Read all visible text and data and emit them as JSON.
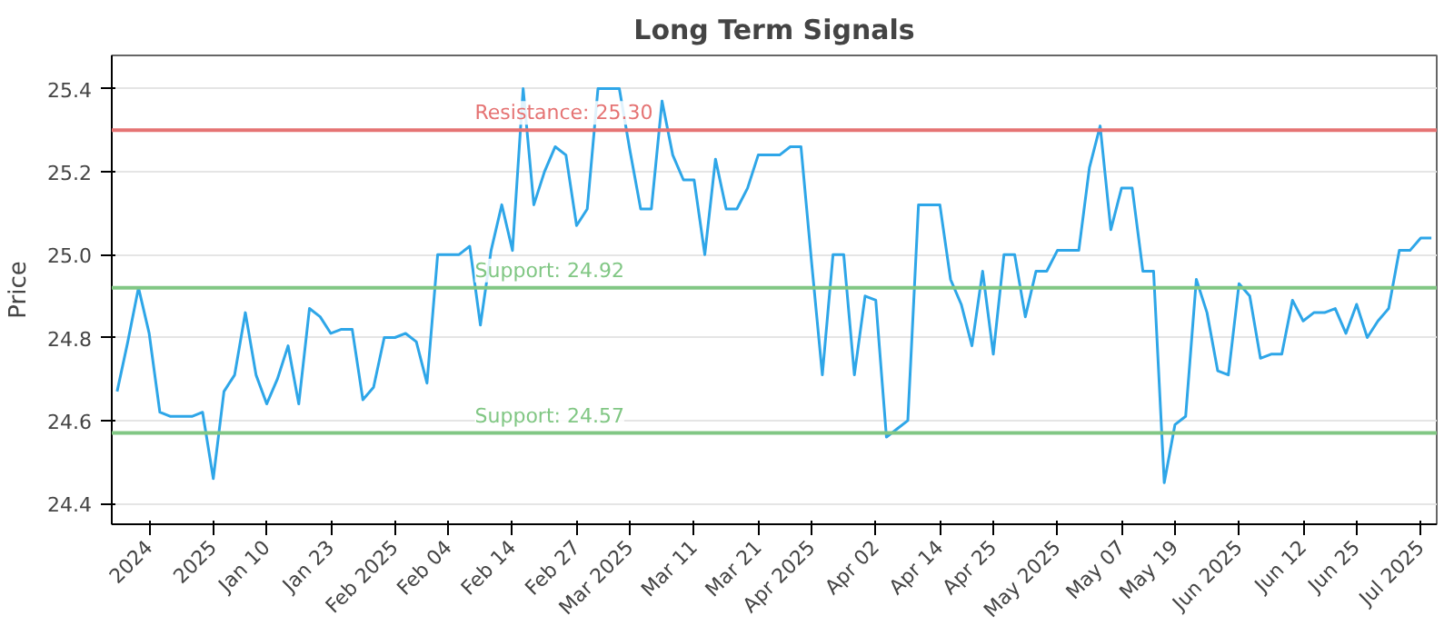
{
  "chart_data": {
    "type": "line",
    "title": "Long Term Signals",
    "ylabel": "Price",
    "categories": [
      null,
      null,
      null,
      "2024",
      null,
      null,
      null,
      null,
      null,
      "2025",
      null,
      null,
      null,
      null,
      "Jan 10",
      null,
      null,
      null,
      null,
      null,
      "Jan 23",
      null,
      null,
      null,
      null,
      null,
      "Feb 2025",
      null,
      null,
      null,
      null,
      "Feb 04",
      null,
      null,
      null,
      null,
      null,
      "Feb 14",
      null,
      null,
      null,
      null,
      null,
      "Feb 27",
      null,
      null,
      null,
      null,
      "Mar 2025",
      null,
      null,
      null,
      null,
      null,
      "Mar 11",
      null,
      null,
      null,
      null,
      null,
      "Mar 21",
      null,
      null,
      null,
      null,
      "Apr 2025",
      null,
      null,
      null,
      null,
      null,
      "Apr 02",
      null,
      null,
      null,
      null,
      null,
      "Apr 14",
      null,
      null,
      null,
      null,
      "Apr 25",
      null,
      null,
      null,
      null,
      null,
      "May 2025",
      null,
      null,
      null,
      null,
      null,
      "May 07",
      null,
      null,
      null,
      null,
      "May 19",
      null,
      null,
      null,
      null,
      null,
      "Jun 2025",
      null,
      null,
      null,
      null,
      null,
      "Jun 12",
      null,
      null,
      null,
      null,
      "Jun 25",
      null,
      null,
      null,
      null,
      null,
      "Jul 2025",
      null
    ],
    "series": [
      {
        "color": "#2ea6e8",
        "values": [
          24.67,
          24.79,
          24.92,
          24.81,
          24.62,
          24.61,
          24.61,
          24.61,
          24.62,
          24.46,
          24.67,
          24.71,
          24.86,
          24.71,
          24.64,
          24.7,
          24.78,
          24.64,
          24.87,
          24.85,
          24.81,
          24.82,
          24.82,
          24.65,
          24.68,
          24.8,
          24.8,
          24.81,
          24.79,
          24.69,
          25.0,
          25.0,
          25.0,
          25.02,
          24.83,
          25.01,
          25.12,
          25.01,
          25.4,
          25.12,
          25.2,
          25.26,
          25.24,
          25.07,
          25.11,
          25.4,
          25.4,
          25.4,
          25.25,
          25.11,
          25.11,
          25.37,
          25.24,
          25.18,
          25.18,
          25.0,
          25.23,
          25.11,
          25.11,
          25.16,
          25.24,
          25.24,
          25.24,
          25.26,
          25.26,
          24.98,
          24.71,
          25.0,
          25.0,
          24.71,
          24.9,
          24.89,
          24.56,
          24.58,
          24.6,
          25.12,
          25.12,
          25.12,
          24.94,
          24.88,
          24.78,
          24.96,
          24.76,
          25.0,
          25.0,
          24.85,
          24.96,
          24.96,
          25.01,
          25.01,
          25.01,
          25.21,
          25.31,
          25.06,
          25.16,
          25.16,
          24.96,
          24.96,
          24.45,
          24.59,
          24.61,
          24.94,
          24.86,
          24.72,
          24.71,
          24.93,
          24.9,
          24.75,
          24.76,
          24.76,
          24.89,
          24.84,
          24.86,
          24.86,
          24.87,
          24.81,
          24.88,
          24.8,
          24.84,
          24.87,
          25.01,
          25.01,
          25.04,
          25.04
        ]
      }
    ],
    "ylim": [
      24.35,
      25.48
    ],
    "yticks": [
      {
        "value": 24.4,
        "label": "24.4"
      },
      {
        "value": 24.6,
        "label": "24.6"
      },
      {
        "value": 24.8,
        "label": "24.8"
      },
      {
        "value": 25.0,
        "label": "25.0"
      },
      {
        "value": 25.2,
        "label": "25.2"
      },
      {
        "value": 25.4,
        "label": "25.4"
      }
    ],
    "grid": "y",
    "marker": "none",
    "line_style": "solid",
    "ref_lines": [
      {
        "axis": "y",
        "value": 25.3,
        "label": "Resistance: 25.30",
        "color": "#e57373"
      },
      {
        "axis": "y",
        "value": 24.92,
        "label": "Support: 24.92",
        "color": "#81c784"
      },
      {
        "axis": "y",
        "value": 24.57,
        "label": "Support: 24.57",
        "color": "#81c784"
      }
    ]
  }
}
